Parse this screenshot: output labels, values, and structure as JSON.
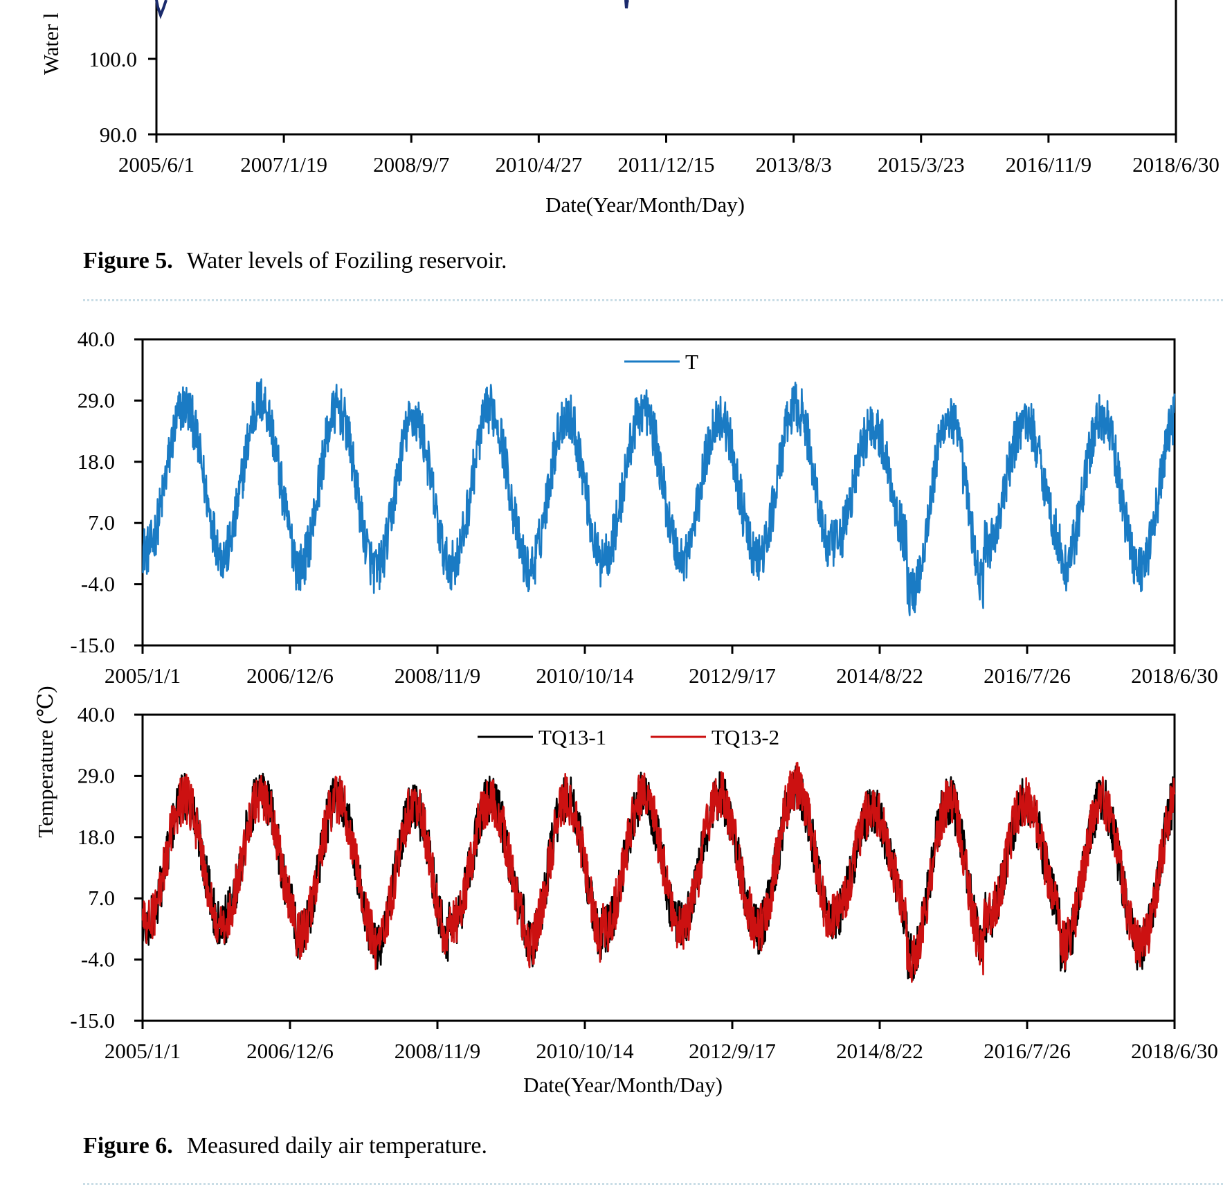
{
  "figure5": {
    "caption_label": "Figure 5.",
    "caption_text": "Water levels of Foziling reservoir.",
    "chart_data": {
      "type": "line",
      "title": "",
      "ylabel": "Water l",
      "xlabel": "Date(Year/Month/Day)",
      "yticks": [
        "100.0",
        "90.0"
      ],
      "ylim_visible": [
        90,
        100
      ],
      "xtick_labels": [
        "2005/6/1",
        "2007/1/19",
        "2008/9/7",
        "2010/4/27",
        "2011/12/15",
        "2013/8/3",
        "2015/3/23",
        "2016/11/9",
        "2018/6/30"
      ],
      "series": [
        {
          "name": "Water level",
          "color": "#1a2a6c"
        }
      ]
    }
  },
  "figure6": {
    "caption_label": "Figure 6.",
    "caption_text": "Measured daily air temperature.",
    "ylabel": "Temperature (℃)",
    "xlabel": "Date(Year/Month/Day)",
    "chart_data": [
      {
        "type": "line",
        "title": "",
        "ylim": [
          -15,
          40
        ],
        "yticks": [
          "40.0",
          "29.0",
          "18.0",
          "7.0",
          "-4.0",
          "-15.0"
        ],
        "xtick_labels": [
          "2005/1/1",
          "2006/12/6",
          "2008/11/9",
          "2010/10/14",
          "2012/9/17",
          "2014/8/22",
          "2016/7/26",
          "2018/6/30"
        ],
        "x_range": [
          "2005/1/1",
          "2018/6/30"
        ],
        "series": [
          {
            "name": "T",
            "color": "#1a7bc4",
            "annual_peaks_C": [
              32,
              33,
              31.5,
              30,
              31.5,
              30.5,
              31.5,
              30,
              32,
              28.5,
              30,
              29.5,
              30,
              31
            ],
            "annual_troughs_C": [
              -3,
              -4,
              -6,
              -6.5,
              -5.5,
              -6.5,
              -3.5,
              -4.5,
              -4.5,
              -2,
              -10.5,
              -2,
              -6
            ]
          }
        ]
      },
      {
        "type": "line",
        "title": "",
        "ylim": [
          -15,
          40
        ],
        "yticks": [
          "40.0",
          "29.0",
          "18.0",
          "7.0",
          "-4.0",
          "-15.0"
        ],
        "xtick_labels": [
          "2005/1/1",
          "2006/12/6",
          "2008/11/9",
          "2010/10/14",
          "2012/9/17",
          "2014/8/22",
          "2016/7/26",
          "2018/6/30"
        ],
        "x_range": [
          "2005/1/1",
          "2018/6/30"
        ],
        "series": [
          {
            "name": "TQ13-1",
            "color": "#000000",
            "annual_peaks_C": [
              29,
              30,
              29,
              27.5,
              29,
              29,
              29.5,
              29.5,
              31,
              27,
              28.5,
              28.5,
              28.5,
              30
            ],
            "annual_troughs_C": [
              -3,
              -2,
              -5,
              -7,
              -2.5,
              -6.5,
              -3.5,
              -3,
              -3.5,
              -1.5,
              -8.5,
              -1.5,
              -7
            ]
          },
          {
            "name": "TQ13-2",
            "color": "#cc1111",
            "annual_peaks_C": [
              29,
              29.5,
              29,
              27.5,
              29,
              29,
              29.5,
              29.5,
              31.5,
              27,
              28.5,
              28.5,
              28.5,
              29.5
            ],
            "annual_troughs_C": [
              -3,
              -2,
              -5,
              -7,
              -2.5,
              -6.5,
              -3.5,
              -3,
              -3.5,
              -1.5,
              -9.5,
              -1.5,
              -6.5
            ]
          }
        ]
      }
    ]
  }
}
